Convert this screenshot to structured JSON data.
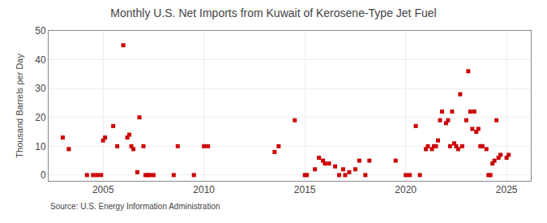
{
  "chart_data": {
    "type": "scatter",
    "title": "Monthly U.S. Net Imports from Kuwait of Kerosene-Type Jet Fuel",
    "ylabel": "Thousand Barrels per Day",
    "annotations": [
      "Source: U.S. Energy Information Administration"
    ],
    "color": "#cc0000",
    "marker": "square",
    "grid": true,
    "xlim": [
      2002.3,
      2026.2
    ],
    "xticks": [
      2005,
      2010,
      2015,
      2020,
      2025
    ],
    "ylim": [
      -2,
      50
    ],
    "yticks": [
      0,
      10,
      20,
      30,
      40,
      50
    ],
    "x": [
      2003.0,
      2003.3,
      2004.2,
      2004.5,
      2004.7,
      2004.9,
      2005.0,
      2005.1,
      2005.5,
      2005.7,
      2006.0,
      2006.2,
      2006.3,
      2006.4,
      2006.5,
      2006.7,
      2006.8,
      2007.0,
      2007.1,
      2007.2,
      2007.3,
      2007.5,
      2008.5,
      2008.7,
      2009.5,
      2010.0,
      2010.2,
      2013.5,
      2013.7,
      2014.5,
      2015.0,
      2015.1,
      2015.5,
      2015.7,
      2015.9,
      2016.0,
      2016.2,
      2016.5,
      2016.7,
      2016.9,
      2017.0,
      2017.2,
      2017.5,
      2017.7,
      2018.0,
      2018.2,
      2019.5,
      2020.0,
      2020.2,
      2020.5,
      2020.7,
      2021.0,
      2021.1,
      2021.3,
      2021.4,
      2021.5,
      2021.6,
      2021.7,
      2021.8,
      2022.0,
      2022.1,
      2022.2,
      2022.3,
      2022.4,
      2022.5,
      2022.6,
      2022.7,
      2022.8,
      2023.0,
      2023.1,
      2023.2,
      2023.3,
      2023.4,
      2023.5,
      2023.6,
      2023.7,
      2023.8,
      2024.0,
      2024.1,
      2024.2,
      2024.3,
      2024.4,
      2024.5,
      2024.6,
      2024.7,
      2025.0,
      2025.1
    ],
    "values": [
      13,
      9,
      0,
      0,
      0,
      0,
      12,
      13,
      17,
      10,
      45,
      13,
      14,
      10,
      9,
      1,
      20,
      10,
      0,
      0,
      0,
      0,
      0,
      10,
      0,
      10,
      10,
      8,
      10,
      19,
      0,
      0,
      2,
      6,
      5,
      4,
      4,
      3,
      0,
      2,
      0,
      1,
      2,
      5,
      0,
      5,
      5,
      0,
      0,
      17,
      0,
      9,
      10,
      9,
      10,
      10,
      12,
      19,
      22,
      18,
      19,
      10,
      22,
      11,
      10,
      9,
      28,
      10,
      19,
      36,
      22,
      16,
      22,
      15,
      16,
      10,
      10,
      9,
      0,
      0,
      4,
      5,
      19,
      6,
      7,
      6,
      7
    ]
  }
}
